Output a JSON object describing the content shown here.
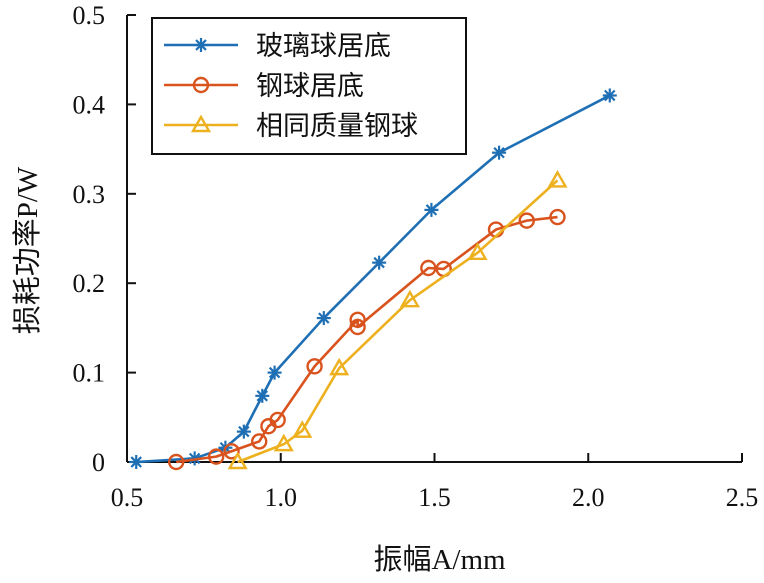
{
  "chart_data": {
    "type": "line",
    "title": "",
    "xlabel": "振幅A/mm",
    "ylabel": "损耗功率P/W",
    "xlim": [
      0.5,
      2.5
    ],
    "ylim": [
      0,
      0.5
    ],
    "xticks": [
      "0.5",
      "1.0",
      "1.5",
      "2.0",
      "2.5"
    ],
    "yticks": [
      "0",
      "0.1",
      "0.2",
      "0.3",
      "0.4",
      "0.5"
    ],
    "grid": false,
    "legend_position": "top-left",
    "series": [
      {
        "name": "玻璃球居底",
        "color": "#1f6fb5",
        "marker": "star",
        "points": [
          [
            0.53,
            0.0
          ],
          [
            0.72,
            0.004
          ],
          [
            0.82,
            0.016
          ],
          [
            0.88,
            0.034
          ],
          [
            0.94,
            0.074
          ],
          [
            0.98,
            0.1
          ],
          [
            1.14,
            0.161
          ],
          [
            1.32,
            0.223
          ],
          [
            1.49,
            0.282
          ],
          [
            1.71,
            0.346
          ],
          [
            2.07,
            0.41
          ]
        ]
      },
      {
        "name": "钢球居底",
        "color": "#d9531e",
        "marker": "circle",
        "points": [
          [
            0.66,
            0.0
          ],
          [
            0.79,
            0.006
          ],
          [
            0.84,
            0.012
          ],
          [
            0.93,
            0.023
          ],
          [
            0.96,
            0.04
          ],
          [
            0.99,
            0.047
          ],
          [
            1.11,
            0.107
          ],
          [
            1.25,
            0.159
          ],
          [
            1.25,
            0.151
          ],
          [
            1.48,
            0.217
          ],
          [
            1.53,
            0.216
          ],
          [
            1.7,
            0.26
          ],
          [
            1.8,
            0.27
          ],
          [
            1.9,
            0.274
          ]
        ]
      },
      {
        "name": "相同质量钢球",
        "color": "#edb120",
        "marker": "triangle",
        "points": [
          [
            0.86,
            0.0
          ],
          [
            1.01,
            0.02
          ],
          [
            1.07,
            0.035
          ],
          [
            1.19,
            0.105
          ],
          [
            1.42,
            0.181
          ],
          [
            1.64,
            0.234
          ],
          [
            1.9,
            0.315
          ]
        ]
      }
    ]
  }
}
